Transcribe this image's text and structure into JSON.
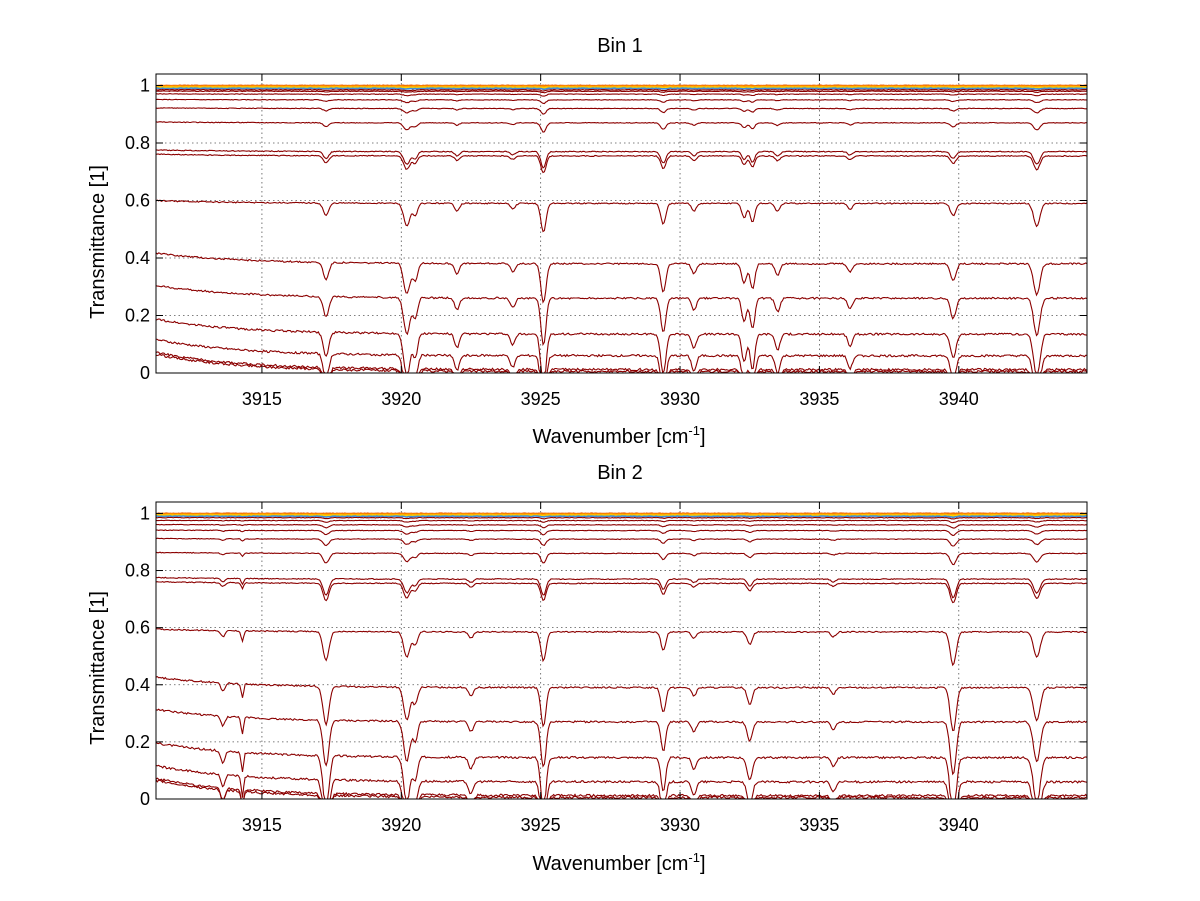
{
  "chart_data": [
    {
      "type": "line",
      "title": "Bin 1",
      "xlabel": "Wavenumber [cm",
      "xlabel_sup": "-1",
      "xlabel_close": "]",
      "ylabel": "Transmittance [1]",
      "xlim": [
        3911.2,
        3944.6
      ],
      "ylim": [
        0,
        1.04
      ],
      "xticks": [
        3915,
        3920,
        3925,
        3930,
        3935,
        3940
      ],
      "xtick_labels": [
        "3915",
        "3920",
        "3925",
        "3930",
        "3935",
        "3940"
      ],
      "yticks": [
        0,
        0.2,
        0.4,
        0.6,
        0.8,
        1
      ],
      "ytick_labels": [
        "0",
        "0.2",
        "0.4",
        "0.6",
        "0.8",
        "1"
      ],
      "grid": true,
      "line_color": "#8b0000",
      "top_colors": [
        "#e65c00",
        "#ff8c00",
        "#ffb000",
        "#ffd000",
        "#3f8fd6"
      ],
      "features": [
        {
          "x": 3917.3,
          "depth": 0.3,
          "width": 0.14
        },
        {
          "x": 3920.2,
          "depth": 0.55,
          "width": 0.16
        },
        {
          "x": 3920.5,
          "depth": 0.3,
          "width": 0.12
        },
        {
          "x": 3922.0,
          "depth": 0.18,
          "width": 0.12
        },
        {
          "x": 3924.0,
          "depth": 0.14,
          "width": 0.12
        },
        {
          "x": 3925.1,
          "depth": 0.7,
          "width": 0.13
        },
        {
          "x": 3929.4,
          "depth": 0.5,
          "width": 0.13
        },
        {
          "x": 3930.5,
          "depth": 0.18,
          "width": 0.12
        },
        {
          "x": 3932.3,
          "depth": 0.35,
          "width": 0.12
        },
        {
          "x": 3932.6,
          "depth": 0.45,
          "width": 0.12
        },
        {
          "x": 3933.5,
          "depth": 0.2,
          "width": 0.12
        },
        {
          "x": 3936.1,
          "depth": 0.15,
          "width": 0.12
        },
        {
          "x": 3939.8,
          "depth": 0.3,
          "width": 0.14
        },
        {
          "x": 3942.8,
          "depth": 0.55,
          "width": 0.16
        }
      ],
      "series_levels": [
        1.0,
        0.998,
        0.995,
        0.993,
        0.99,
        0.985,
        0.98,
        0.97,
        0.95,
        0.92,
        0.87,
        0.77,
        0.755,
        0.59,
        0.38,
        0.26,
        0.135,
        0.06,
        0.012,
        0.005
      ]
    },
    {
      "type": "line",
      "title": "Bin 2",
      "xlabel": "Wavenumber [cm",
      "xlabel_sup": "-1",
      "xlabel_close": "]",
      "ylabel": "Transmittance [1]",
      "xlim": [
        3911.2,
        3944.6
      ],
      "ylim": [
        0,
        1.04
      ],
      "xticks": [
        3915,
        3920,
        3925,
        3930,
        3935,
        3940
      ],
      "xtick_labels": [
        "3915",
        "3920",
        "3925",
        "3930",
        "3935",
        "3940"
      ],
      "yticks": [
        0,
        0.2,
        0.4,
        0.6,
        0.8,
        1
      ],
      "ytick_labels": [
        "0",
        "0.2",
        "0.4",
        "0.6",
        "0.8",
        "1"
      ],
      "grid": true,
      "line_color": "#8b0000",
      "top_colors": [
        "#e65c00",
        "#ff8c00",
        "#ffb000",
        "#ffd000",
        "#3f8fd6"
      ],
      "features": [
        {
          "x": 3913.6,
          "depth": 0.15,
          "width": 0.1
        },
        {
          "x": 3914.3,
          "depth": 0.25,
          "width": 0.06
        },
        {
          "x": 3917.3,
          "depth": 0.7,
          "width": 0.15
        },
        {
          "x": 3920.2,
          "depth": 0.6,
          "width": 0.16
        },
        {
          "x": 3920.5,
          "depth": 0.3,
          "width": 0.12
        },
        {
          "x": 3922.5,
          "depth": 0.15,
          "width": 0.12
        },
        {
          "x": 3925.1,
          "depth": 0.7,
          "width": 0.13
        },
        {
          "x": 3929.4,
          "depth": 0.45,
          "width": 0.12
        },
        {
          "x": 3930.5,
          "depth": 0.15,
          "width": 0.12
        },
        {
          "x": 3932.5,
          "depth": 0.3,
          "width": 0.13
        },
        {
          "x": 3935.5,
          "depth": 0.12,
          "width": 0.12
        },
        {
          "x": 3939.8,
          "depth": 0.8,
          "width": 0.15
        },
        {
          "x": 3942.8,
          "depth": 0.6,
          "width": 0.17
        }
      ],
      "series_levels": [
        1.0,
        0.998,
        0.995,
        0.993,
        0.99,
        0.985,
        0.975,
        0.96,
        0.94,
        0.91,
        0.86,
        0.77,
        0.755,
        0.585,
        0.39,
        0.27,
        0.145,
        0.06,
        0.012,
        0.005
      ]
    }
  ]
}
